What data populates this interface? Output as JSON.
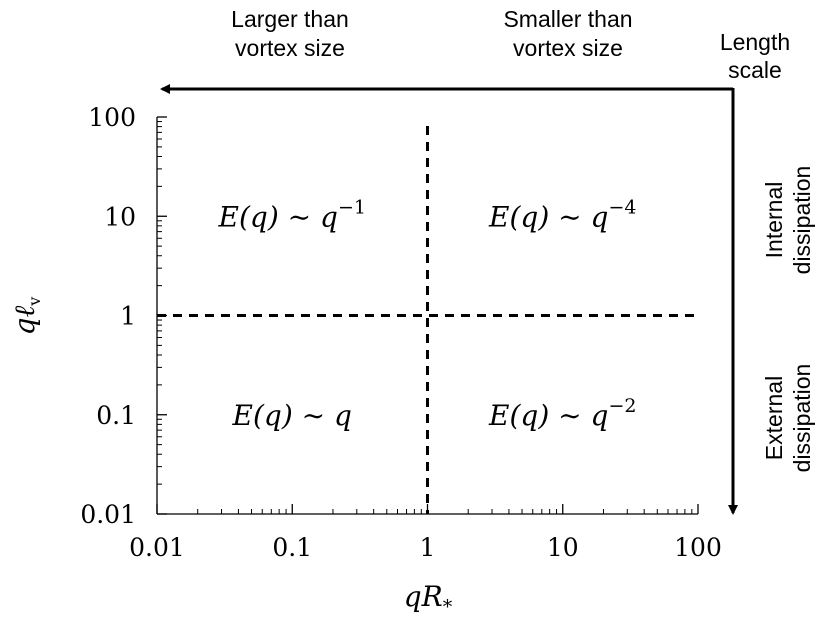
{
  "chart_data": {
    "type": "diagram",
    "x_scale": "log",
    "y_scale": "log",
    "xlim": [
      0.01,
      100
    ],
    "ylim": [
      0.01,
      100
    ],
    "x_ticks": [
      0.01,
      0.1,
      1,
      10,
      100
    ],
    "y_ticks": [
      0.01,
      0.1,
      1,
      10,
      100
    ],
    "x_tick_labels": [
      "0.01",
      "0.1",
      "1",
      "10",
      "100"
    ],
    "y_tick_labels": [
      "0.01",
      "0.1",
      "1",
      "10",
      "100"
    ],
    "xlabel": {
      "main": "qR",
      "sub": "*"
    },
    "ylabel": {
      "main": "qℓ",
      "sub": "v"
    },
    "divider_x": 1,
    "divider_y": 1,
    "regions": [
      {
        "name": "top-left",
        "x": 0.1,
        "y": 10,
        "lhs": "E(q) ∼ q",
        "exponent": "−1"
      },
      {
        "name": "top-right",
        "x": 10,
        "y": 10,
        "lhs": "E(q) ∼ q",
        "exponent": "−4"
      },
      {
        "name": "bottom-left",
        "x": 0.1,
        "y": 0.1,
        "lhs": "E(q) ∼ q",
        "exponent": ""
      },
      {
        "name": "bottom-right",
        "x": 10,
        "y": 0.1,
        "lhs": "E(q) ∼ q",
        "exponent": "−2"
      }
    ],
    "annotations": {
      "left_header": [
        "Larger than",
        "vortex size"
      ],
      "right_header": [
        "Smaller than",
        "vortex size"
      ],
      "arrow_label": [
        "Length",
        "scale"
      ],
      "internal": [
        "Internal",
        "dissipation"
      ],
      "external": [
        "External",
        "dissipation"
      ]
    },
    "grid": false
  }
}
